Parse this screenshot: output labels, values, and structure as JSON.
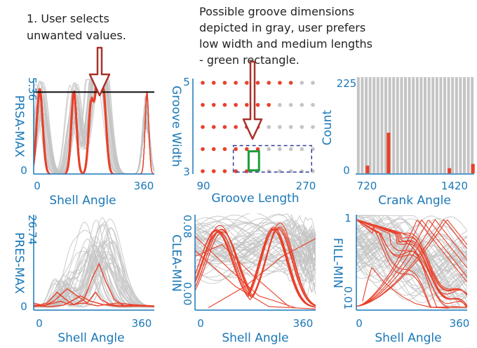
{
  "annotations": {
    "step1": [
      "1. User selects",
      "unwanted values."
    ],
    "groove_note": [
      "Possible groove dimensions",
      "depicted in gray, user prefers",
      "low width and medium lengths",
      "- green rectangle."
    ]
  },
  "colors": {
    "axis": "#1a78b8",
    "selected": "#e8402a",
    "background_series": "#c4c4c4",
    "preferred_region": "#1a9e3a",
    "arrow": "#a8322a",
    "dashed_box": "#2f3c9e"
  },
  "chart_data": [
    {
      "id": "prsa",
      "type": "line",
      "xlabel": "Shell Angle",
      "ylabel": "PRSA-MAX",
      "xticks": [
        "0",
        "360"
      ],
      "yticks": [
        "0",
        "5.36"
      ],
      "xlim": [
        0,
        360
      ],
      "ylim": [
        0,
        5.36
      ],
      "threshold": 4.6,
      "peak_centers": [
        18,
        120,
        172,
        190,
        207
      ],
      "peak_widths": [
        9,
        8,
        8,
        7,
        9
      ],
      "peak_heights": [
        5.0,
        4.9,
        4.3,
        4.6,
        5.0
      ]
    },
    {
      "id": "groove",
      "type": "scatter",
      "xlabel": "Groove Length",
      "ylabel": "Groove Width",
      "xticks": [
        "90",
        "270"
      ],
      "yticks": [
        "3",
        "5"
      ],
      "xlim": [
        90,
        270
      ],
      "ylim": [
        3,
        5
      ],
      "grid_x": [
        90,
        108,
        126,
        144,
        162,
        180,
        198,
        216,
        234,
        252,
        270
      ],
      "grid_y": [
        3,
        3.5,
        4,
        4.5,
        5
      ],
      "red_points": [
        [
          90,
          5
        ],
        [
          108,
          5
        ],
        [
          126,
          5
        ],
        [
          144,
          5
        ],
        [
          162,
          5
        ],
        [
          180,
          5
        ],
        [
          198,
          5
        ],
        [
          216,
          5
        ],
        [
          234,
          5
        ],
        [
          90,
          4.5
        ],
        [
          108,
          4.5
        ],
        [
          126,
          4.5
        ],
        [
          144,
          4.5
        ],
        [
          162,
          4.5
        ],
        [
          180,
          4.5
        ],
        [
          198,
          4.5
        ],
        [
          90,
          4
        ],
        [
          108,
          4
        ],
        [
          126,
          4
        ],
        [
          144,
          4
        ],
        [
          162,
          4
        ],
        [
          180,
          4
        ],
        [
          90,
          3.5
        ],
        [
          108,
          3.5
        ],
        [
          126,
          3.5
        ],
        [
          144,
          3.5
        ],
        [
          162,
          3.5
        ],
        [
          180,
          3.5
        ],
        [
          90,
          3
        ],
        [
          108,
          3
        ],
        [
          126,
          3
        ],
        [
          144,
          3
        ],
        [
          162,
          3
        ]
      ],
      "preferred_region": {
        "x": [
          165,
          182
        ],
        "y": [
          3.02,
          3.45
        ]
      },
      "dashed_region": {
        "x": [
          140,
          268
        ],
        "y": [
          2.98,
          3.58
        ]
      }
    },
    {
      "id": "crank",
      "type": "bar",
      "xlabel": "Crank Angle",
      "ylabel": "Count",
      "xticks": [
        "720",
        "1420"
      ],
      "yticks": [
        "0",
        "225"
      ],
      "xlim": [
        700,
        1440
      ],
      "ylim": [
        0,
        225
      ],
      "gray_bars": 30,
      "red_bars": [
        {
          "x": 770,
          "value": 18
        },
        {
          "x": 902,
          "value": 95
        },
        {
          "x": 1284,
          "value": 12
        },
        {
          "x": 1432,
          "value": 22
        }
      ]
    },
    {
      "id": "pres",
      "type": "line",
      "xlabel": "Shell Angle",
      "ylabel": "PRES-MAX",
      "xticks": [
        "0",
        "360"
      ],
      "yticks": [
        "0",
        "26.74"
      ],
      "xlim": [
        0,
        360
      ],
      "ylim": [
        0,
        26.74
      ],
      "gray_peak_centers": [
        170,
        185,
        200,
        215
      ],
      "gray_peak_heights": [
        18,
        22,
        26,
        24
      ]
    },
    {
      "id": "clea",
      "type": "line",
      "xlabel": "Shell Angle",
      "ylabel": "CLEA-MIN",
      "xticks": [
        "0",
        "360"
      ],
      "yticks": [
        "0.00",
        "0.08"
      ],
      "xlim": [
        0,
        360
      ],
      "ylim": [
        0,
        0.08
      ]
    },
    {
      "id": "fill",
      "type": "line",
      "xlabel": "Shell Angle",
      "ylabel": "FILL-MIN",
      "xticks": [
        "0",
        "360"
      ],
      "yticks": [
        "0.01",
        "1"
      ],
      "xlim": [
        0,
        360
      ],
      "ylim": [
        0.01,
        1
      ]
    }
  ]
}
